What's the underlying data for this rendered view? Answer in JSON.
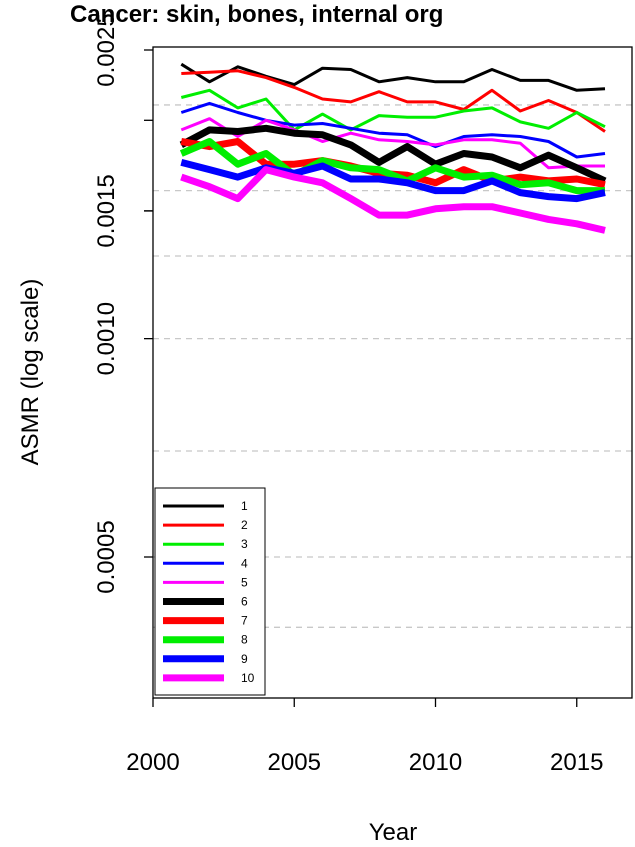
{
  "chart_data": {
    "type": "line",
    "title": "Cancer: skin, bones, internal org",
    "xlabel": "Year",
    "ylabel": "ASMR (log scale)",
    "y_scale": "log",
    "x_range": [
      2000,
      2016.5
    ],
    "y_range": [
      0.00035,
      0.0025
    ],
    "x_ticks": [
      "2000",
      "2005",
      "2010",
      "2015"
    ],
    "y_ticks": [
      "0.0005",
      "0.0010",
      "0.0015",
      "0.0025"
    ],
    "grid": "horizontal dashed",
    "legend_position": "bottom-left",
    "x": [
      2001,
      2002,
      2003,
      2004,
      2005,
      2006,
      2007,
      2008,
      2009,
      2010,
      2011,
      2012,
      2013,
      2014,
      2015,
      2016
    ],
    "series": [
      {
        "name": "1",
        "color": "#000000",
        "lw": 3,
        "values": [
          0.00239,
          0.00226,
          0.00237,
          0.0023,
          0.00224,
          0.00236,
          0.00235,
          0.00226,
          0.00229,
          0.00226,
          0.00226,
          0.00235,
          0.00227,
          0.00227,
          0.0022,
          0.00221
        ]
      },
      {
        "name": "2",
        "color": "#ff0000",
        "lw": 3,
        "values": [
          0.00232,
          0.00233,
          0.00234,
          0.00229,
          0.00222,
          0.00214,
          0.00212,
          0.00219,
          0.00212,
          0.00212,
          0.00207,
          0.0022,
          0.00206,
          0.00213,
          0.00205,
          0.00193
        ]
      },
      {
        "name": "3",
        "color": "#00ee00",
        "lw": 3,
        "values": [
          0.00215,
          0.0022,
          0.00208,
          0.00214,
          0.00194,
          0.00204,
          0.00194,
          0.00203,
          0.00202,
          0.00202,
          0.00206,
          0.00208,
          0.00199,
          0.00195,
          0.00205,
          0.00196
        ]
      },
      {
        "name": "4",
        "color": "#0000ff",
        "lw": 3,
        "values": [
          0.00205,
          0.00211,
          0.00205,
          0.002,
          0.00197,
          0.00198,
          0.00195,
          0.00192,
          0.00191,
          0.00184,
          0.0019,
          0.00191,
          0.0019,
          0.00187,
          0.00178,
          0.0018
        ]
      },
      {
        "name": "5",
        "color": "#ff00ff",
        "lw": 3,
        "values": [
          0.00194,
          0.00201,
          0.0019,
          0.002,
          0.00194,
          0.00187,
          0.00192,
          0.00188,
          0.00187,
          0.00185,
          0.00188,
          0.00188,
          0.00186,
          0.00172,
          0.00173,
          0.00173
        ]
      },
      {
        "name": "6",
        "color": "#000000",
        "lw": 7,
        "values": [
          0.00185,
          0.00194,
          0.00193,
          0.00195,
          0.00192,
          0.00191,
          0.00185,
          0.00175,
          0.00184,
          0.00174,
          0.0018,
          0.00178,
          0.00172,
          0.00179,
          0.00172,
          0.00165
        ]
      },
      {
        "name": "7",
        "color": "#ff0000",
        "lw": 7,
        "values": [
          0.00187,
          0.00184,
          0.00187,
          0.00174,
          0.00174,
          0.00176,
          0.00173,
          0.00169,
          0.00168,
          0.00164,
          0.00171,
          0.00165,
          0.00167,
          0.00165,
          0.00166,
          0.00163
        ]
      },
      {
        "name": "8",
        "color": "#00ee00",
        "lw": 7,
        "values": [
          0.0018,
          0.00187,
          0.00174,
          0.0018,
          0.00168,
          0.00176,
          0.00172,
          0.00171,
          0.00165,
          0.00172,
          0.00167,
          0.00168,
          0.00163,
          0.00164,
          0.0016,
          0.0016
        ]
      },
      {
        "name": "9",
        "color": "#0000ff",
        "lw": 7,
        "values": [
          0.00175,
          0.00171,
          0.00167,
          0.00172,
          0.00169,
          0.00173,
          0.00166,
          0.00166,
          0.00164,
          0.0016,
          0.0016,
          0.00165,
          0.00159,
          0.00157,
          0.00156,
          0.00159
        ]
      },
      {
        "name": "10",
        "color": "#ff00ff",
        "lw": 7,
        "values": [
          0.00167,
          0.00162,
          0.00156,
          0.00171,
          0.00167,
          0.00164,
          0.00156,
          0.00148,
          0.00148,
          0.00151,
          0.00152,
          0.00152,
          0.00149,
          0.00146,
          0.00144,
          0.00141
        ]
      }
    ]
  }
}
